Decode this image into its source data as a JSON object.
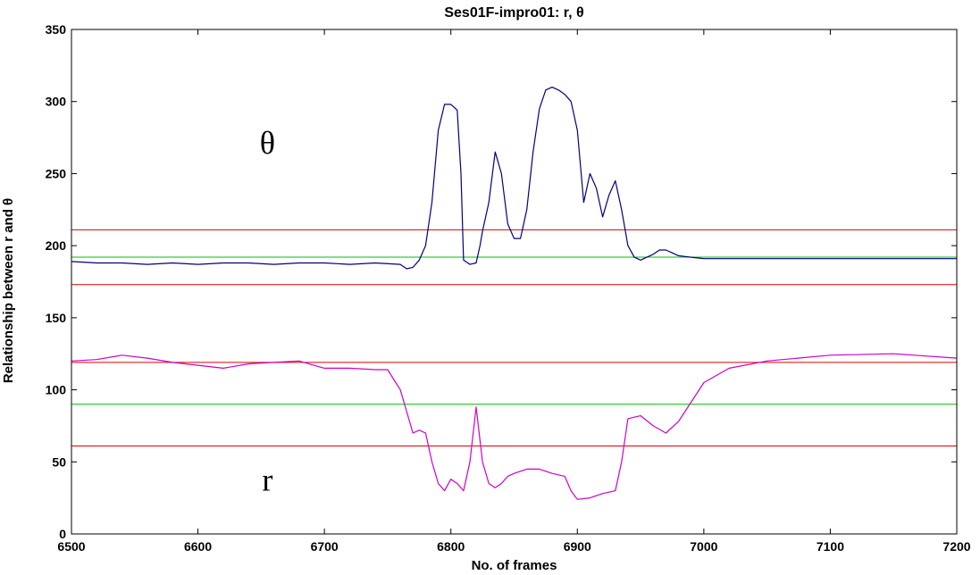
{
  "chart_data": {
    "type": "line",
    "title": "Ses01F-impro01: r, θ",
    "xlabel": "No. of frames",
    "ylabel": "Relationship between r and θ",
    "xlim": [
      6500,
      7200
    ],
    "ylim": [
      0,
      350
    ],
    "xticks": [
      6500,
      6600,
      6700,
      6800,
      6900,
      7000,
      7100,
      7200
    ],
    "yticks": [
      0,
      50,
      100,
      150,
      200,
      250,
      300,
      350
    ],
    "grid": false,
    "annotations": [
      {
        "text": "θ",
        "x": 6655,
        "y": 264
      },
      {
        "text": "r",
        "x": 6655,
        "y": 30
      }
    ],
    "hlines": [
      {
        "y": 211,
        "color": "#e00000"
      },
      {
        "y": 192,
        "color": "#00c000"
      },
      {
        "y": 173,
        "color": "#e00000"
      },
      {
        "y": 119,
        "color": "#e00000"
      },
      {
        "y": 90,
        "color": "#00c000"
      },
      {
        "y": 61,
        "color": "#e00000"
      }
    ],
    "series": [
      {
        "color": "#000080",
        "x": [
          6500,
          6520,
          6540,
          6560,
          6580,
          6600,
          6620,
          6640,
          6660,
          6680,
          6700,
          6720,
          6740,
          6760,
          6765,
          6770,
          6775,
          6780,
          6785,
          6790,
          6795,
          6800,
          6805,
          6808,
          6810,
          6815,
          6820,
          6823,
          6825,
          6830,
          6835,
          6840,
          6845,
          6850,
          6855,
          6860,
          6865,
          6870,
          6875,
          6880,
          6885,
          6890,
          6895,
          6900,
          6905,
          6910,
          6915,
          6920,
          6925,
          6930,
          6935,
          6940,
          6945,
          6950,
          6955,
          6960,
          6965,
          6970,
          6975,
          6980,
          6990,
          7000,
          7050,
          7100,
          7150,
          7200
        ],
        "values": [
          189,
          188,
          188,
          187,
          188,
          187,
          188,
          188,
          187,
          188,
          188,
          187,
          188,
          187,
          184,
          185,
          190,
          200,
          230,
          280,
          298,
          298,
          294,
          250,
          190,
          187,
          188,
          200,
          210,
          230,
          265,
          250,
          215,
          205,
          205,
          225,
          265,
          295,
          308,
          310,
          308,
          305,
          300,
          280,
          230,
          250,
          240,
          220,
          235,
          245,
          225,
          200,
          192,
          190,
          192,
          194,
          197,
          197,
          195,
          193,
          192,
          191,
          191,
          191,
          191,
          191
        ]
      },
      {
        "color": "#cc00cc",
        "x": [
          6500,
          6520,
          6540,
          6560,
          6580,
          6600,
          6620,
          6640,
          6660,
          6680,
          6700,
          6720,
          6740,
          6750,
          6760,
          6770,
          6775,
          6780,
          6785,
          6790,
          6795,
          6800,
          6805,
          6810,
          6815,
          6820,
          6825,
          6830,
          6835,
          6840,
          6845,
          6850,
          6860,
          6870,
          6880,
          6890,
          6895,
          6900,
          6910,
          6920,
          6930,
          6935,
          6940,
          6950,
          6960,
          6970,
          6980,
          7000,
          7020,
          7050,
          7100,
          7150,
          7200
        ],
        "values": [
          120,
          121,
          124,
          122,
          119,
          117,
          115,
          118,
          119,
          120,
          115,
          115,
          114,
          114,
          100,
          70,
          72,
          70,
          50,
          35,
          30,
          38,
          35,
          30,
          50,
          88,
          50,
          35,
          32,
          35,
          40,
          42,
          45,
          45,
          42,
          40,
          30,
          24,
          25,
          28,
          30,
          50,
          80,
          82,
          75,
          70,
          78,
          105,
          115,
          120,
          124,
          125,
          122
        ]
      }
    ]
  }
}
